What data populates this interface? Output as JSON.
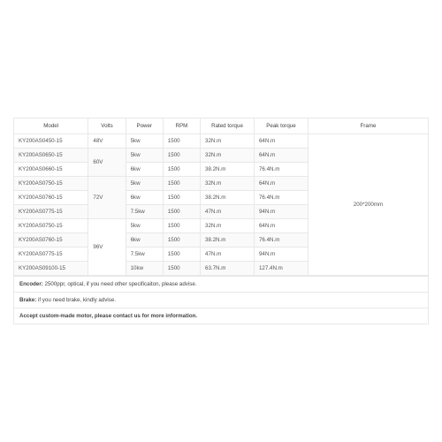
{
  "headers": [
    "Model",
    "Volts",
    "Power",
    "RPM",
    "Rated torque",
    "Peak torque",
    "Frame"
  ],
  "frame_value": "200*200mm",
  "groups": [
    {
      "volts": "48V",
      "rows": [
        {
          "model": "KY200AS0450-15",
          "power": "5kw",
          "rpm": "1500",
          "rated": "32N.m",
          "peak": "64N.m"
        }
      ]
    },
    {
      "volts": "60V",
      "rows": [
        {
          "model": "KY200AS0650-15",
          "power": "5kw",
          "rpm": "1500",
          "rated": "32N.m",
          "peak": "64N.m"
        },
        {
          "model": "KY200AS0660-15",
          "power": "6kw",
          "rpm": "1500",
          "rated": "38.2N.m",
          "peak": "76.4N.m"
        }
      ]
    },
    {
      "volts": "72V",
      "rows": [
        {
          "model": "KY200AS0750-15",
          "power": "5kw",
          "rpm": "1500",
          "rated": "32N.m",
          "peak": "64N.m"
        },
        {
          "model": "KY200AS0760-15",
          "power": "6kw",
          "rpm": "1500",
          "rated": "38.2N.m",
          "peak": "76.4N.m"
        },
        {
          "model": "KY200AS0775-15",
          "power": "7.5kw",
          "rpm": "1500",
          "rated": "47N.m",
          "peak": "94N.m"
        }
      ]
    },
    {
      "volts": "96V",
      "rows": [
        {
          "model": "KY200AS0750-15",
          "power": "5kw",
          "rpm": "1500",
          "rated": "32N.m",
          "peak": "64N.m"
        },
        {
          "model": "KY200AS0760-15",
          "power": "6kw",
          "rpm": "1500",
          "rated": "38.2N.m",
          "peak": "76.4N.m"
        },
        {
          "model": "KY200AS0775-15",
          "power": "7.5kw",
          "rpm": "1500",
          "rated": "47N.m",
          "peak": "94N.m"
        },
        {
          "model": "KY200AS09100-15",
          "power": "10kw",
          "rpm": "1500",
          "rated": "63.7N.m",
          "peak": "127.4N.m"
        }
      ]
    }
  ],
  "notes": [
    {
      "bold": "Encoder:",
      "text": " 2500ppr, optical, if you need other specificaiton, please advise."
    },
    {
      "bold": "Brake:",
      "text": " if you need brake, kindly advise."
    },
    {
      "bold": "Accept custom-made motor, please contact us for more information.",
      "text": ""
    }
  ]
}
